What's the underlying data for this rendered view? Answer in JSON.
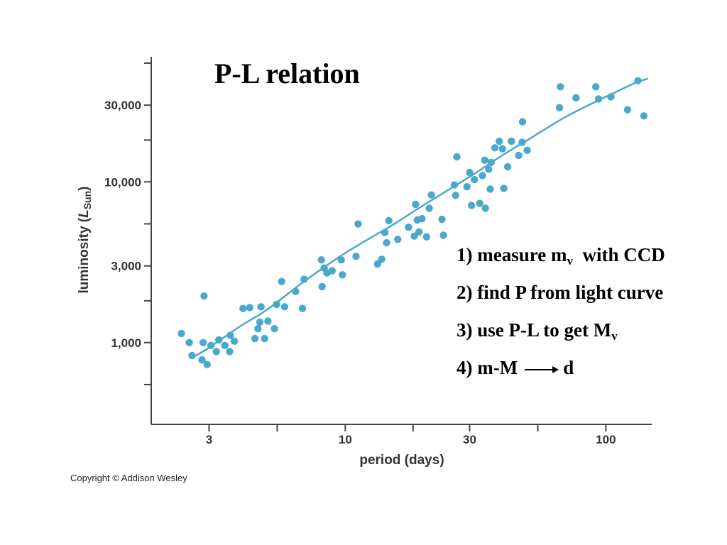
{
  "title": "P-L relation",
  "steps": [
    {
      "prefix": "1) measure m",
      "sub": "v",
      "suffix": "  with CCD"
    },
    {
      "prefix": "2) find P from light curve"
    },
    {
      "prefix": "3) use P-L to get M",
      "sub": "v"
    },
    {
      "prefix": "4) m-M",
      "arrow": true,
      "suffix": "d"
    }
  ],
  "copyright": "Copyright © Addison Wesley",
  "colors": {
    "points": "#4aa8cc",
    "curve": "#4aa8cc",
    "axis": "#444444",
    "text": "#000000"
  },
  "chart_data": {
    "type": "scatter",
    "xlabel": "period (days)",
    "ylabel_main": "luminosity (",
    "ylabel_italic": "L",
    "ylabel_sub": "Sun",
    "ylabel_end": ")",
    "x_scale": "log",
    "y_scale": "log",
    "xlim": [
      1.8,
      150
    ],
    "ylim": [
      310,
      60000
    ],
    "x_ticks": [
      3,
      10,
      30,
      100
    ],
    "x_tick_labels": [
      "3",
      "10",
      "30",
      "100"
    ],
    "x_minor_ticks": [
      5.48,
      18.2,
      54.8
    ],
    "y_ticks": [
      1000,
      3000,
      10000,
      30000
    ],
    "y_tick_labels": [
      "1,000",
      "3,000",
      "10,000",
      "30,000"
    ],
    "y_minor_ticks": [
      548,
      1820,
      5480,
      18200,
      54800
    ],
    "grid": false,
    "legend": "none",
    "points": [
      [
        2.35,
        1140
      ],
      [
        2.52,
        1000
      ],
      [
        2.58,
        830
      ],
      [
        2.82,
        780
      ],
      [
        2.85,
        1000
      ],
      [
        2.87,
        1950
      ],
      [
        2.95,
        730
      ],
      [
        3.05,
        960
      ],
      [
        3.2,
        880
      ],
      [
        3.27,
        1040
      ],
      [
        3.45,
        960
      ],
      [
        3.6,
        880
      ],
      [
        3.62,
        1110
      ],
      [
        3.75,
        1020
      ],
      [
        4.05,
        1630
      ],
      [
        4.3,
        1650
      ],
      [
        4.5,
        1060
      ],
      [
        4.62,
        1220
      ],
      [
        4.7,
        1340
      ],
      [
        4.75,
        1670
      ],
      [
        4.9,
        1060
      ],
      [
        5.05,
        1360
      ],
      [
        5.35,
        1220
      ],
      [
        5.45,
        1730
      ],
      [
        5.7,
        2400
      ],
      [
        5.85,
        1670
      ],
      [
        6.45,
        2080
      ],
      [
        6.85,
        1630
      ],
      [
        6.95,
        2480
      ],
      [
        8.1,
        3270
      ],
      [
        8.15,
        2230
      ],
      [
        8.3,
        2910
      ],
      [
        8.5,
        2710
      ],
      [
        8.9,
        2800
      ],
      [
        9.65,
        3270
      ],
      [
        9.75,
        2640
      ],
      [
        11.0,
        3440
      ],
      [
        11.2,
        5470
      ],
      [
        13.3,
        3080
      ],
      [
        13.8,
        3300
      ],
      [
        14.2,
        4840
      ],
      [
        14.4,
        4180
      ],
      [
        14.7,
        5740
      ],
      [
        15.9,
        4390
      ],
      [
        17.5,
        5220
      ],
      [
        18.4,
        4600
      ],
      [
        18.6,
        7240
      ],
      [
        18.9,
        5800
      ],
      [
        19.2,
        4880
      ],
      [
        19.7,
        5900
      ],
      [
        20.5,
        4550
      ],
      [
        21.0,
        6850
      ],
      [
        21.4,
        8290
      ],
      [
        23.5,
        5850
      ],
      [
        23.8,
        4660
      ],
      [
        26.2,
        9560
      ],
      [
        26.5,
        8240
      ],
      [
        26.8,
        14330
      ],
      [
        29.3,
        9320
      ],
      [
        30.0,
        11430
      ],
      [
        30.5,
        7140
      ],
      [
        31.3,
        10330
      ],
      [
        32.8,
        7350
      ],
      [
        33.6,
        10940
      ],
      [
        34.3,
        13630
      ],
      [
        34.5,
        6850
      ],
      [
        35.5,
        11990
      ],
      [
        36.0,
        9020
      ],
      [
        36.3,
        13220
      ],
      [
        37.5,
        16290
      ],
      [
        39.0,
        17880
      ],
      [
        40.1,
        16050
      ],
      [
        40.6,
        9110
      ],
      [
        42.0,
        12400
      ],
      [
        43.4,
        17880
      ],
      [
        46.3,
        14610
      ],
      [
        47.7,
        17610
      ],
      [
        47.9,
        23620
      ],
      [
        49.9,
        15720
      ],
      [
        66.4,
        28930
      ],
      [
        66.9,
        39050
      ],
      [
        76.8,
        33300
      ],
      [
        91.5,
        39050
      ],
      [
        93.7,
        32780
      ],
      [
        104.6,
        33810
      ],
      [
        121.1,
        28080
      ],
      [
        132.7,
        42560
      ],
      [
        140.0,
        25720
      ]
    ],
    "fit_curve": [
      [
        2.6,
        810
      ],
      [
        3,
        930
      ],
      [
        4,
        1280
      ],
      [
        5,
        1600
      ],
      [
        7,
        2420
      ],
      [
        10,
        3610
      ],
      [
        15,
        5330
      ],
      [
        20,
        7170
      ],
      [
        30,
        10760
      ],
      [
        40,
        14610
      ],
      [
        50,
        18180
      ],
      [
        70,
        25330
      ],
      [
        100,
        33810
      ],
      [
        130,
        41320
      ],
      [
        145,
        43870
      ]
    ]
  }
}
